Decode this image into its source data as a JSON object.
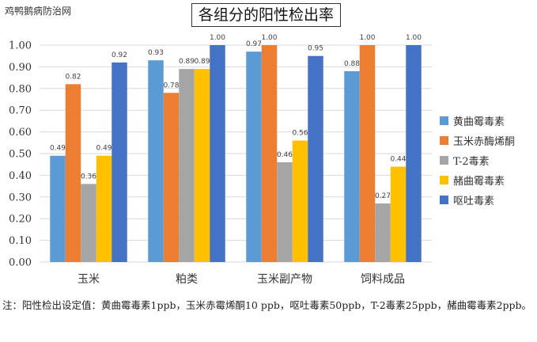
{
  "watermark": "鸡鸭鹅病防治网",
  "note": "注：阳性检出设定值：黄曲霉毒素1ppb，玉米赤霉烯酮10 ppb，呕吐毒素50ppb，T-2毒素25ppb，赭曲霉毒素2ppb。",
  "chart_data": {
    "type": "bar",
    "title": "各组分的阳性检出率",
    "xlabel": "",
    "ylabel": "",
    "ylim": [
      0,
      1.0
    ],
    "yticks": [
      "0.00",
      "0.10",
      "0.20",
      "0.30",
      "0.40",
      "0.50",
      "0.60",
      "0.70",
      "0.80",
      "0.90",
      "1.00"
    ],
    "grid": true,
    "legend_position": "right",
    "categories": [
      "玉米",
      "粕类",
      "玉米副产物",
      "饲料成品"
    ],
    "series": [
      {
        "name": "黄曲霉毒素",
        "color": "#5B9BD5",
        "values": [
          0.49,
          0.93,
          0.97,
          0.88
        ],
        "labels": [
          "0.49",
          "0.93",
          "0.97",
          "0.88"
        ]
      },
      {
        "name": "玉米赤酶烯酮",
        "color": "#ED7D31",
        "values": [
          0.82,
          0.78,
          1.0,
          1.0
        ],
        "labels": [
          "0.82",
          "0.78",
          "1.00",
          "1.00"
        ]
      },
      {
        "name": "T-2毒素",
        "color": "#A5A5A5",
        "values": [
          0.36,
          0.89,
          0.46,
          0.27
        ],
        "labels": [
          "0.36",
          "0.89",
          "0.46",
          "0.27"
        ]
      },
      {
        "name": "赭曲霉毒素",
        "color": "#FFC000",
        "values": [
          0.49,
          0.89,
          0.56,
          0.44
        ],
        "labels": [
          "0.49",
          "0.89",
          "0.56",
          "0.44"
        ]
      },
      {
        "name": "呕吐毒素",
        "color": "#4472C4",
        "values": [
          0.92,
          1.0,
          0.95,
          1.0
        ],
        "labels": [
          "0.92",
          "1.00",
          "0.95",
          "1.00"
        ]
      }
    ]
  }
}
